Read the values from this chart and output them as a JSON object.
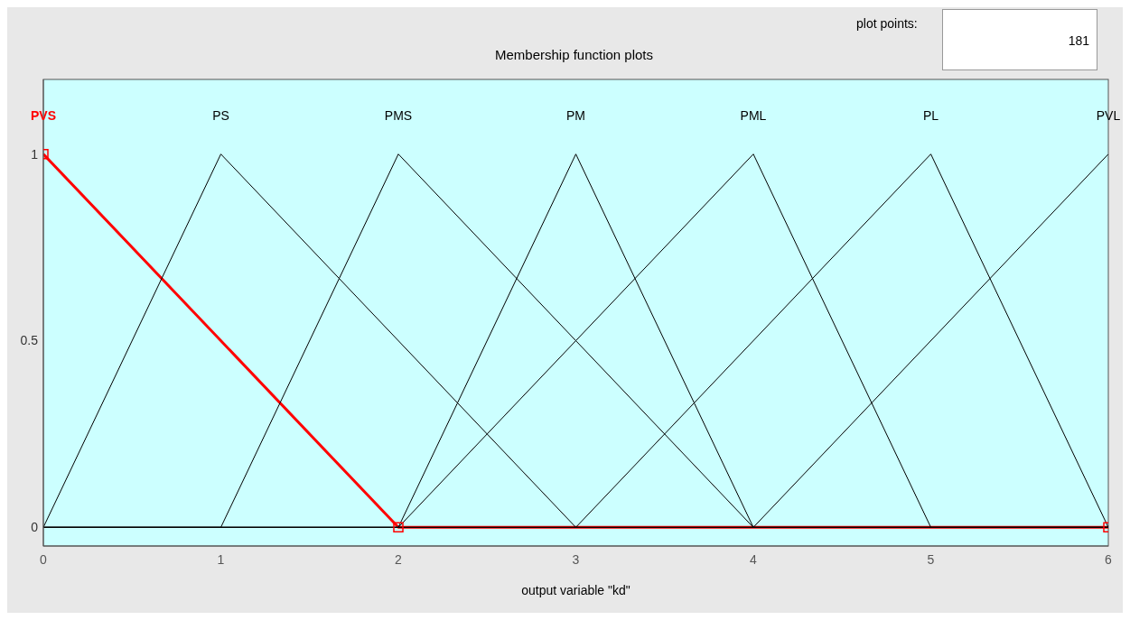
{
  "chart_data": {
    "type": "line",
    "title": "Membership function plots",
    "xlabel": "output variable \"kd\"",
    "annotations": [
      "plot points:",
      "181"
    ],
    "xlim": [
      0,
      6
    ],
    "xticks": [
      0,
      1,
      2,
      3,
      4,
      5,
      6
    ],
    "ylim": [
      -0.05,
      1.2
    ],
    "yticks": [
      0,
      0.5,
      1
    ],
    "grid": false,
    "legend": false,
    "marker": "none",
    "line_style": "solid",
    "series": [
      {
        "name": "PVS",
        "color": "#ff0000",
        "x": [
          0,
          2,
          6
        ],
        "values": [
          1,
          0,
          0
        ],
        "marker": "square"
      },
      {
        "name": "PS",
        "color": "#000000",
        "x": [
          0,
          1,
          3,
          6
        ],
        "values": [
          0,
          1,
          0,
          0
        ]
      },
      {
        "name": "PMS",
        "color": "#000000",
        "x": [
          0,
          1,
          2,
          4,
          6
        ],
        "values": [
          0,
          0,
          1,
          0,
          0
        ]
      },
      {
        "name": "PM",
        "color": "#000000",
        "x": [
          0,
          2,
          3,
          4,
          6
        ],
        "values": [
          0,
          0,
          1,
          0,
          0
        ]
      },
      {
        "name": "PML",
        "color": "#000000",
        "x": [
          0,
          2,
          4,
          5,
          6
        ],
        "values": [
          0,
          0,
          1,
          0,
          0
        ]
      },
      {
        "name": "PL",
        "color": "#000000",
        "x": [
          0,
          3,
          5,
          6
        ],
        "values": [
          0,
          0,
          1,
          0
        ]
      },
      {
        "name": "PVL",
        "color": "#000000",
        "x": [
          0,
          4,
          6
        ],
        "values": [
          0,
          0,
          1
        ]
      }
    ]
  }
}
